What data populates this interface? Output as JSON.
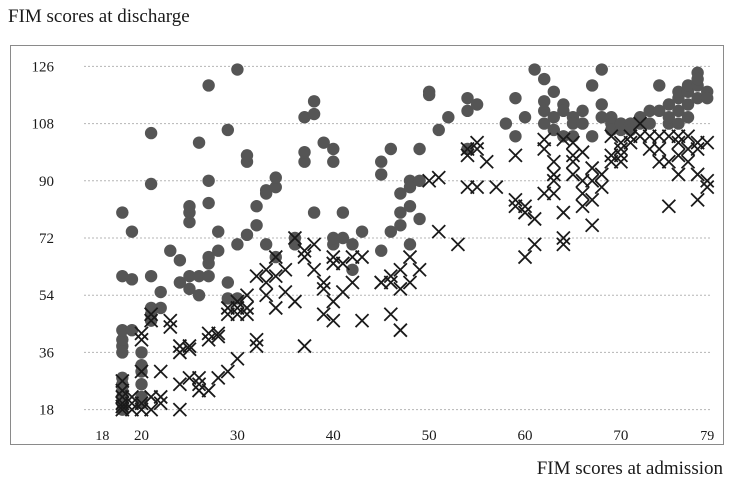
{
  "chart_data": {
    "type": "scatter",
    "ylabel": "FIM scores at discharge",
    "xlabel": "FIM scores at admission",
    "xlim": [
      14,
      79.5
    ],
    "ylim": [
      16,
      128
    ],
    "y_ticks": [
      18,
      36,
      54,
      72,
      90,
      108,
      126
    ],
    "x_ticks": [
      20,
      30,
      40,
      50,
      60,
      70
    ],
    "x_extra_labels": [
      {
        "value": 18,
        "label": "18"
      },
      {
        "value": 79,
        "label": "79"
      }
    ],
    "grid": "horizontal dotted",
    "colors": {
      "dot": "#555555",
      "cross": "#1a1a1a",
      "grid": "#b5b5b5",
      "frame": "#8a8a8a"
    },
    "series": [
      {
        "marker": "dot",
        "points": [
          [
            18,
            18
          ],
          [
            18,
            20
          ],
          [
            18,
            22
          ],
          [
            18,
            24
          ],
          [
            18,
            26
          ],
          [
            18,
            28
          ],
          [
            18,
            36
          ],
          [
            18,
            38
          ],
          [
            18,
            40
          ],
          [
            18,
            43
          ],
          [
            18,
            60
          ],
          [
            18,
            80
          ],
          [
            19,
            43
          ],
          [
            19,
            59
          ],
          [
            19,
            74
          ],
          [
            20,
            20
          ],
          [
            20,
            22
          ],
          [
            20,
            26
          ],
          [
            20,
            30
          ],
          [
            20,
            32
          ],
          [
            20,
            36
          ],
          [
            21,
            46
          ],
          [
            21,
            48
          ],
          [
            21,
            50
          ],
          [
            21,
            60
          ],
          [
            21,
            89
          ],
          [
            21,
            105
          ],
          [
            22,
            50
          ],
          [
            22,
            55
          ],
          [
            23,
            68
          ],
          [
            24,
            65
          ],
          [
            24,
            58
          ],
          [
            25,
            56
          ],
          [
            25,
            60
          ],
          [
            25,
            77
          ],
          [
            25,
            80
          ],
          [
            25,
            82
          ],
          [
            26,
            102
          ],
          [
            26,
            54
          ],
          [
            26,
            60
          ],
          [
            27,
            60
          ],
          [
            27,
            64
          ],
          [
            27,
            66
          ],
          [
            27,
            83
          ],
          [
            27,
            90
          ],
          [
            27,
            120
          ],
          [
            28,
            68
          ],
          [
            28,
            74
          ],
          [
            29,
            53
          ],
          [
            29,
            58
          ],
          [
            29,
            106
          ],
          [
            30,
            53
          ],
          [
            30,
            70
          ],
          [
            30,
            125
          ],
          [
            31,
            73
          ],
          [
            31,
            96
          ],
          [
            31,
            98
          ],
          [
            32,
            76
          ],
          [
            32,
            82
          ],
          [
            33,
            70
          ],
          [
            33,
            86
          ],
          [
            33,
            87
          ],
          [
            34,
            66
          ],
          [
            34,
            88
          ],
          [
            34,
            91
          ],
          [
            36,
            72
          ],
          [
            36,
            70
          ],
          [
            37,
            96
          ],
          [
            37,
            99
          ],
          [
            37,
            110
          ],
          [
            38,
            80
          ],
          [
            38,
            111
          ],
          [
            38,
            115
          ],
          [
            39,
            102
          ],
          [
            40,
            100
          ],
          [
            40,
            96
          ],
          [
            40,
            70
          ],
          [
            40,
            72
          ],
          [
            41,
            72
          ],
          [
            41,
            80
          ],
          [
            42,
            62
          ],
          [
            42,
            70
          ],
          [
            43,
            74
          ],
          [
            45,
            96
          ],
          [
            45,
            92
          ],
          [
            45,
            68
          ],
          [
            46,
            100
          ],
          [
            46,
            74
          ],
          [
            47,
            86
          ],
          [
            47,
            80
          ],
          [
            47,
            76
          ],
          [
            48,
            90
          ],
          [
            48,
            88
          ],
          [
            48,
            70
          ],
          [
            48,
            82
          ],
          [
            49,
            90
          ],
          [
            49,
            78
          ],
          [
            49,
            100
          ],
          [
            50,
            118
          ],
          [
            50,
            117
          ],
          [
            51,
            106
          ],
          [
            52,
            110
          ],
          [
            54,
            112
          ],
          [
            54,
            116
          ],
          [
            54,
            100
          ],
          [
            55,
            114
          ],
          [
            58,
            108
          ],
          [
            59,
            116
          ],
          [
            59,
            104
          ],
          [
            60,
            110
          ],
          [
            61,
            125
          ],
          [
            62,
            122
          ],
          [
            62,
            115
          ],
          [
            62,
            112
          ],
          [
            62,
            108
          ],
          [
            63,
            118
          ],
          [
            63,
            110
          ],
          [
            63,
            106
          ],
          [
            64,
            114
          ],
          [
            64,
            112
          ],
          [
            64,
            104
          ],
          [
            65,
            110
          ],
          [
            65,
            108
          ],
          [
            65,
            104
          ],
          [
            66,
            112
          ],
          [
            66,
            108
          ],
          [
            67,
            120
          ],
          [
            67,
            104
          ],
          [
            68,
            125
          ],
          [
            68,
            114
          ],
          [
            68,
            110
          ],
          [
            69,
            110
          ],
          [
            69,
            108
          ],
          [
            69,
            106
          ],
          [
            70,
            108
          ],
          [
            70,
            106
          ],
          [
            71,
            108
          ],
          [
            71,
            106
          ],
          [
            72,
            110
          ],
          [
            72,
            108
          ],
          [
            73,
            112
          ],
          [
            73,
            108
          ],
          [
            74,
            120
          ],
          [
            74,
            112
          ],
          [
            75,
            114
          ],
          [
            75,
            108
          ],
          [
            75,
            110
          ],
          [
            76,
            116
          ],
          [
            76,
            118
          ],
          [
            76,
            112
          ],
          [
            76,
            108
          ],
          [
            77,
            118
          ],
          [
            77,
            114
          ],
          [
            77,
            120
          ],
          [
            77,
            110
          ],
          [
            78,
            124
          ],
          [
            78,
            120
          ],
          [
            78,
            116
          ],
          [
            78,
            122
          ],
          [
            79,
            118
          ],
          [
            79,
            116
          ]
        ]
      },
      {
        "marker": "cross",
        "points": [
          [
            18,
            18
          ],
          [
            18,
            19
          ],
          [
            18,
            20
          ],
          [
            18,
            22
          ],
          [
            18,
            24
          ],
          [
            18,
            27
          ],
          [
            19,
            18
          ],
          [
            19,
            20
          ],
          [
            19,
            22
          ],
          [
            20,
            20
          ],
          [
            20,
            18
          ],
          [
            20,
            42
          ],
          [
            20,
            40
          ],
          [
            20,
            30
          ],
          [
            21,
            18
          ],
          [
            21,
            22
          ],
          [
            21,
            46
          ],
          [
            21,
            48
          ],
          [
            22,
            22
          ],
          [
            22,
            30
          ],
          [
            22,
            20
          ],
          [
            23,
            44
          ],
          [
            23,
            46
          ],
          [
            24,
            18
          ],
          [
            24,
            26
          ],
          [
            24,
            36
          ],
          [
            24,
            38
          ],
          [
            25,
            37
          ],
          [
            25,
            38
          ],
          [
            25,
            28
          ],
          [
            26,
            28
          ],
          [
            26,
            26
          ],
          [
            26,
            24
          ],
          [
            27,
            24
          ],
          [
            27,
            40
          ],
          [
            27,
            42
          ],
          [
            28,
            41
          ],
          [
            28,
            42
          ],
          [
            28,
            28
          ],
          [
            29,
            50
          ],
          [
            29,
            48
          ],
          [
            29,
            30
          ],
          [
            30,
            48
          ],
          [
            30,
            50
          ],
          [
            30,
            52
          ],
          [
            30,
            34
          ],
          [
            31,
            50
          ],
          [
            31,
            54
          ],
          [
            31,
            48
          ],
          [
            32,
            60
          ],
          [
            32,
            40
          ],
          [
            32,
            38
          ],
          [
            33,
            62
          ],
          [
            33,
            58
          ],
          [
            33,
            54
          ],
          [
            34,
            50
          ],
          [
            34,
            60
          ],
          [
            34,
            66
          ],
          [
            35,
            62
          ],
          [
            35,
            55
          ],
          [
            36,
            52
          ],
          [
            36,
            72
          ],
          [
            37,
            38
          ],
          [
            37,
            68
          ],
          [
            37,
            66
          ],
          [
            38,
            62
          ],
          [
            38,
            70
          ],
          [
            39,
            56
          ],
          [
            39,
            48
          ],
          [
            39,
            58
          ],
          [
            40,
            64
          ],
          [
            40,
            66
          ],
          [
            40,
            46
          ],
          [
            40,
            52
          ],
          [
            41,
            64
          ],
          [
            41,
            55
          ],
          [
            42,
            66
          ],
          [
            42,
            58
          ],
          [
            43,
            46
          ],
          [
            43,
            66
          ],
          [
            45,
            58
          ],
          [
            45,
            58
          ],
          [
            46,
            48
          ],
          [
            46,
            58
          ],
          [
            46,
            60
          ],
          [
            47,
            43
          ],
          [
            47,
            56
          ],
          [
            47,
            62
          ],
          [
            48,
            58
          ],
          [
            48,
            66
          ],
          [
            49,
            62
          ],
          [
            50,
            90
          ],
          [
            51,
            91
          ],
          [
            51,
            74
          ],
          [
            53,
            70
          ],
          [
            54,
            100
          ],
          [
            54,
            98
          ],
          [
            54,
            88
          ],
          [
            55,
            102
          ],
          [
            55,
            100
          ],
          [
            55,
            88
          ],
          [
            56,
            96
          ],
          [
            57,
            88
          ],
          [
            59,
            98
          ],
          [
            59,
            84
          ],
          [
            59,
            82
          ],
          [
            60,
            66
          ],
          [
            60,
            80
          ],
          [
            60,
            82
          ],
          [
            61,
            78
          ],
          [
            61,
            70
          ],
          [
            62,
            86
          ],
          [
            62,
            100
          ],
          [
            62,
            103
          ],
          [
            63,
            92
          ],
          [
            63,
            86
          ],
          [
            63,
            96
          ],
          [
            63,
            90
          ],
          [
            64,
            72
          ],
          [
            64,
            70
          ],
          [
            64,
            80
          ],
          [
            64,
            103
          ],
          [
            65,
            96
          ],
          [
            65,
            92
          ],
          [
            65,
            102
          ],
          [
            65,
            98
          ],
          [
            66,
            90
          ],
          [
            66,
            86
          ],
          [
            66,
            82
          ],
          [
            66,
            99
          ],
          [
            67,
            84
          ],
          [
            67,
            76
          ],
          [
            67,
            90
          ],
          [
            67,
            94
          ],
          [
            68,
            92
          ],
          [
            68,
            88
          ],
          [
            69,
            104
          ],
          [
            69,
            96
          ],
          [
            69,
            98
          ],
          [
            70,
            100
          ],
          [
            70,
            98
          ],
          [
            70,
            102
          ],
          [
            70,
            96
          ],
          [
            71,
            104
          ],
          [
            71,
            102
          ],
          [
            72,
            108
          ],
          [
            72,
            104
          ],
          [
            73,
            104
          ],
          [
            73,
            100
          ],
          [
            74,
            104
          ],
          [
            74,
            100
          ],
          [
            74,
            96
          ],
          [
            75,
            96
          ],
          [
            75,
            82
          ],
          [
            75,
            104
          ],
          [
            76,
            102
          ],
          [
            76,
            98
          ],
          [
            76,
            104
          ],
          [
            76,
            92
          ],
          [
            77,
            100
          ],
          [
            77,
            104
          ],
          [
            77,
            96
          ],
          [
            78,
            102
          ],
          [
            78,
            100
          ],
          [
            78,
            84
          ],
          [
            78,
            92
          ],
          [
            79,
            90
          ],
          [
            79,
            88
          ],
          [
            79,
            102
          ]
        ]
      }
    ]
  }
}
